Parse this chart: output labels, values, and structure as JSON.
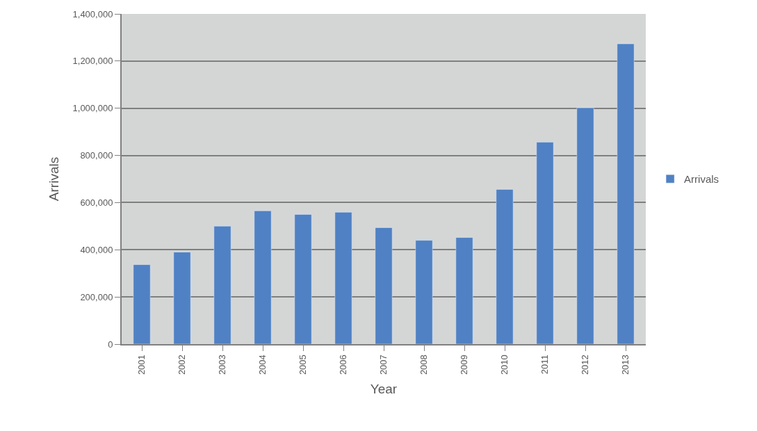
{
  "chart_data": {
    "type": "bar",
    "xlabel": "Year",
    "ylabel": "Arrivals",
    "categories": [
      "2001",
      "2002",
      "2003",
      "2004",
      "2005",
      "2006",
      "2007",
      "2008",
      "2009",
      "2010",
      "2011",
      "2012",
      "2013"
    ],
    "series": [
      {
        "name": "Arrivals",
        "color": "#4f81c4",
        "values": [
          337000,
          390000,
          500000,
          565000,
          550000,
          559000,
          494000,
          440000,
          452000,
          656000,
          856000,
          1002000,
          1273000
        ]
      }
    ],
    "ylim": [
      0,
      1400000
    ],
    "yticks": [
      {
        "value": 0,
        "label": "0"
      },
      {
        "value": 200000,
        "label": "200,000"
      },
      {
        "value": 400000,
        "label": "400,000"
      },
      {
        "value": 600000,
        "label": "600,000"
      },
      {
        "value": 800000,
        "label": "800,000"
      },
      {
        "value": 1000000,
        "label": "1,000,000"
      },
      {
        "value": 1200000,
        "label": "1,200,000"
      },
      {
        "value": 1400000,
        "label": "1,400,000"
      }
    ],
    "grid": "y",
    "legend": "right"
  }
}
